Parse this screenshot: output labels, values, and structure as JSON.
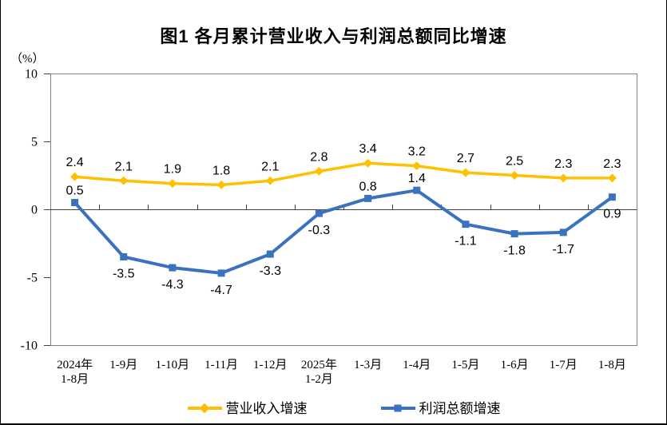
{
  "chart_data": {
    "type": "line",
    "title": "图1 各月累计营业收入与利润总额同比增速",
    "unit_label": "（%）",
    "categories": [
      [
        "2024年",
        "1-8月"
      ],
      [
        "1-9月"
      ],
      [
        "1-10月"
      ],
      [
        "1-11月"
      ],
      [
        "1-12月"
      ],
      [
        "2025年",
        "1-2月"
      ],
      [
        "1-3月"
      ],
      [
        "1-4月"
      ],
      [
        "1-5月"
      ],
      [
        "1-6月"
      ],
      [
        "1-7月"
      ],
      [
        "1-8月"
      ]
    ],
    "series": [
      {
        "name": "营业收入增速",
        "color": "#FFC000",
        "marker": "diamond",
        "values": [
          2.4,
          2.1,
          1.9,
          1.8,
          2.1,
          2.8,
          3.4,
          3.2,
          2.7,
          2.5,
          2.3,
          2.3
        ],
        "label_below": [
          false,
          false,
          false,
          false,
          false,
          false,
          false,
          false,
          false,
          false,
          false,
          false
        ]
      },
      {
        "name": "利润总额增速",
        "color": "#3B72BF",
        "marker": "square",
        "values": [
          0.5,
          -3.5,
          -4.3,
          -4.7,
          -3.3,
          -0.3,
          0.8,
          1.4,
          -1.1,
          -1.8,
          -1.7,
          0.9
        ],
        "label_below": [
          false,
          true,
          true,
          true,
          true,
          true,
          false,
          false,
          true,
          true,
          true,
          true
        ]
      }
    ],
    "y_axis": {
      "min": -10,
      "max": 10,
      "ticks": [
        10,
        5,
        0,
        -5,
        -10
      ]
    },
    "grid": "none",
    "legend_position": "bottom",
    "frame_color": "#808080",
    "axis_color": "#404040",
    "label_color": "#000000"
  }
}
